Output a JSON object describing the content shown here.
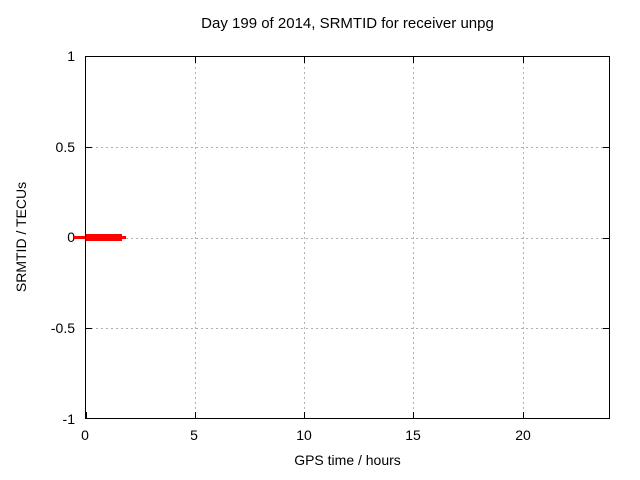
{
  "window": {
    "background": "#ffffff"
  },
  "colors": {
    "series_red": "#ff0000",
    "grid": "#b0b0b0",
    "axis_border": "#000000",
    "text": "#000000"
  },
  "chart_data": {
    "type": "line",
    "title": "Day 199 of 2014, SRMTID for receiver unpg",
    "xlabel": "GPS time / hours",
    "ylabel": "SRMTID / TECUs",
    "xlim": [
      0,
      24
    ],
    "ylim": [
      -1,
      1
    ],
    "xticks": [
      "0",
      "5",
      "10",
      "15",
      "20"
    ],
    "yticks": [
      "1",
      "0.5",
      "0",
      "-0.5",
      "-1"
    ],
    "grid": "dotted, at major ticks",
    "tick_style": "inward, mirrored on all four borders",
    "legend_position": "none",
    "series": [
      {
        "name": "SRMTID",
        "color": "#ff0000",
        "y_value": 0,
        "x_start": 0,
        "x_end": 1.9,
        "points": [
          [
            0,
            0
          ],
          [
            1.9,
            0
          ]
        ],
        "linewidth": "thick (approx 7px) with thin 3px whisker ends"
      }
    ]
  }
}
